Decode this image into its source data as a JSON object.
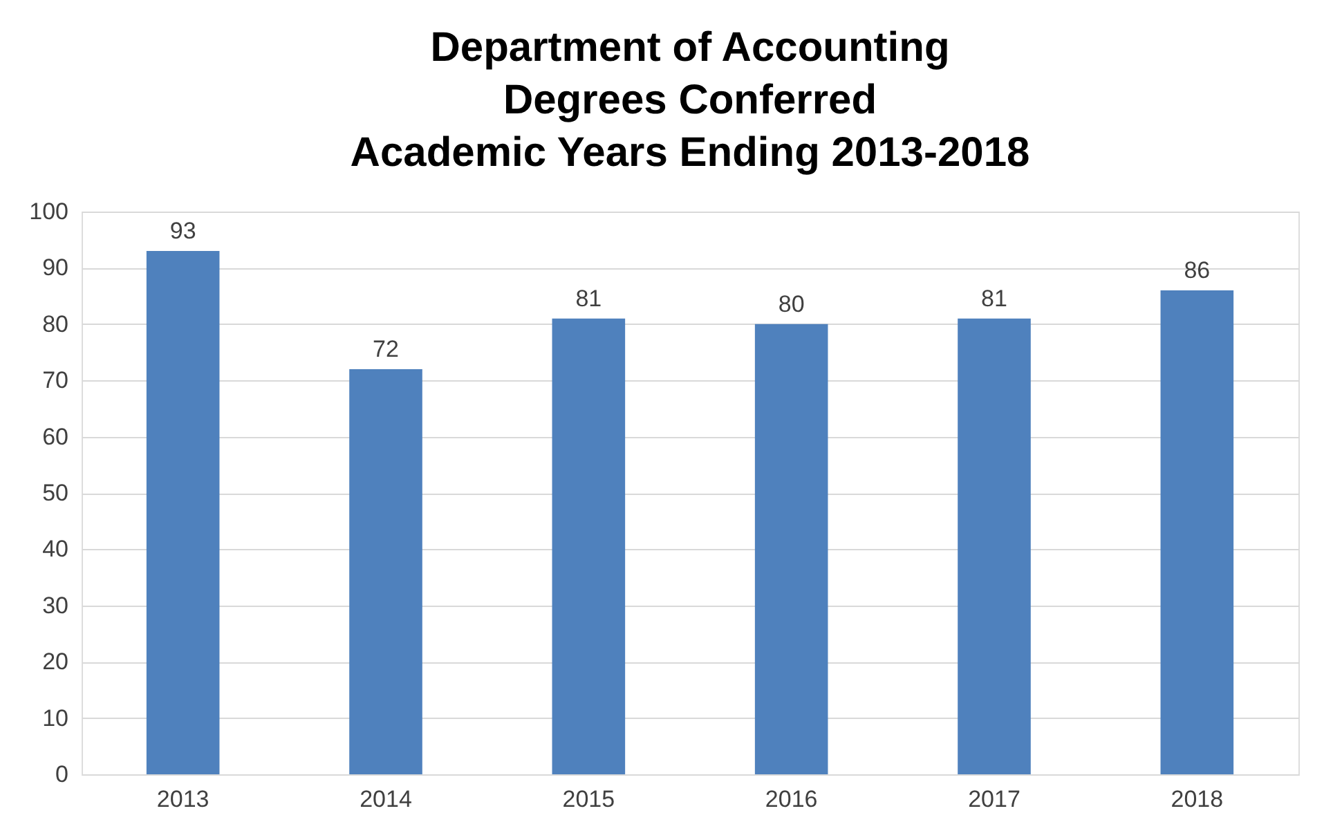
{
  "chart_data": {
    "type": "bar",
    "title": "Department of Accounting\nDegrees Conferred\nAcademic Years Ending 2013-2018",
    "categories": [
      "2013",
      "2014",
      "2015",
      "2016",
      "2017",
      "2018"
    ],
    "values": [
      93,
      72,
      81,
      80,
      81,
      86
    ],
    "color": "#4f81bd",
    "ylim": [
      0,
      100
    ],
    "yticks": [
      0,
      10,
      20,
      30,
      40,
      50,
      60,
      70,
      80,
      90,
      100
    ],
    "grid": "y",
    "data_labels": true
  }
}
